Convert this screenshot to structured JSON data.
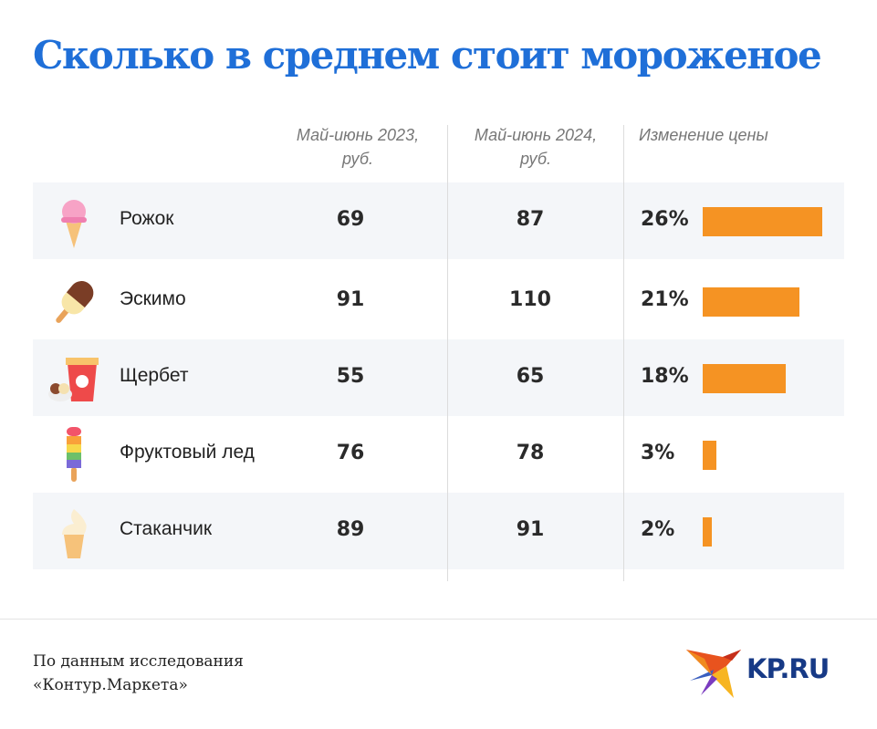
{
  "title": "Сколько в среднем стоит мороженое",
  "chart_data": {
    "type": "table",
    "columns": [
      "Май-июнь 2023, руб.",
      "Май-июнь 2024, руб.",
      "Изменение цены"
    ],
    "rows": [
      {
        "name": "Рожок",
        "icon": "ice-cream-cone-icon",
        "y2023": "69",
        "y2024": "87",
        "change": "26%",
        "change_value": 26
      },
      {
        "name": "Эскимо",
        "icon": "eskimo-popsicle-icon",
        "y2023": "91",
        "y2024": "110",
        "change": "21%",
        "change_value": 21
      },
      {
        "name": "Щербет",
        "icon": "sherbet-cup-icon",
        "y2023": "55",
        "y2024": "65",
        "change": "18%",
        "change_value": 18
      },
      {
        "name": "Фруктовый лед",
        "icon": "fruit-ice-pop-icon",
        "y2023": "76",
        "y2024": "78",
        "change": "3%",
        "change_value": 3
      },
      {
        "name": "Стаканчик",
        "icon": "soft-serve-cup-icon",
        "y2023": "89",
        "y2024": "91",
        "change": "2%",
        "change_value": 2
      }
    ],
    "bar_color": "#f59323"
  },
  "header": {
    "col1_l1": "Май-июнь 2023,",
    "col1_l2": "руб.",
    "col2_l1": "Май-июнь 2024,",
    "col2_l2": "руб.",
    "col3": "Изменение цены"
  },
  "footer": {
    "source_l1": "По данным исследования",
    "source_l2": "«Контур.Маркета»",
    "logo_text": "KP.RU"
  },
  "colors": {
    "title": "#1f6fd8",
    "row_alt": "#f4f6f9",
    "logo": "#173a86"
  }
}
